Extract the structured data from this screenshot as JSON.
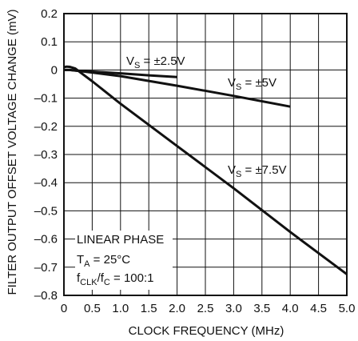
{
  "chart_data": {
    "type": "line",
    "xlabel": "CLOCK FREQUENCY (MHz)",
    "ylabel": "FILTER OUTPUT OFFSET VOLTAGE CHANGE (mV)",
    "xlim": [
      0,
      5
    ],
    "ylim": [
      -0.8,
      0.2
    ],
    "x_ticks": [
      "0",
      "0.5",
      "1.0",
      "1.5",
      "2.0",
      "2.5",
      "3.0",
      "3.5",
      "4.0",
      "4.5",
      "5.0"
    ],
    "y_ticks": [
      "0.2",
      "0.1",
      "0",
      "–0.1",
      "–0.2",
      "–0.3",
      "–0.4",
      "–0.5",
      "–0.6",
      "–0.7",
      "–0.8"
    ],
    "grid": true,
    "series": [
      {
        "name": "VS = ±2.5V",
        "label_main": "V",
        "label_sub": "S",
        "label_rest": " = ±2.5V",
        "x": [
          0,
          0.1,
          0.2,
          0.5,
          1.0,
          1.5,
          2.0
        ],
        "y": [
          0.0,
          0.0,
          -0.002,
          -0.006,
          -0.012,
          -0.019,
          -0.025
        ]
      },
      {
        "name": "VS = ±5V",
        "label_main": "V",
        "label_sub": "S",
        "label_rest": " = ±5V",
        "x": [
          0,
          0.1,
          0.2,
          0.5,
          1.0,
          2.0,
          3.0,
          4.0
        ],
        "y": [
          0.0,
          0.0,
          -0.002,
          -0.009,
          -0.022,
          -0.056,
          -0.092,
          -0.13
        ]
      },
      {
        "name": "VS = ±7.5V",
        "label_main": "V",
        "label_sub": "S",
        "label_rest": " = ±7.5V",
        "x": [
          0,
          0.05,
          0.1,
          0.2,
          0.3,
          0.5,
          1.0,
          2.0,
          3.0,
          4.0,
          5.0
        ],
        "y": [
          0.01,
          0.012,
          0.011,
          0.005,
          -0.01,
          -0.04,
          -0.12,
          -0.27,
          -0.42,
          -0.575,
          -0.725
        ]
      }
    ],
    "annotation": {
      "line1": "LINEAR PHASE",
      "line2_main": "T",
      "line2_sub": "A",
      "line2_rest": " = 25°C",
      "line3_a": "f",
      "line3_a_sub": "CLK",
      "line3_b": "/f",
      "line3_b_sub": "C",
      "line3_rest": " = 100:1"
    }
  }
}
